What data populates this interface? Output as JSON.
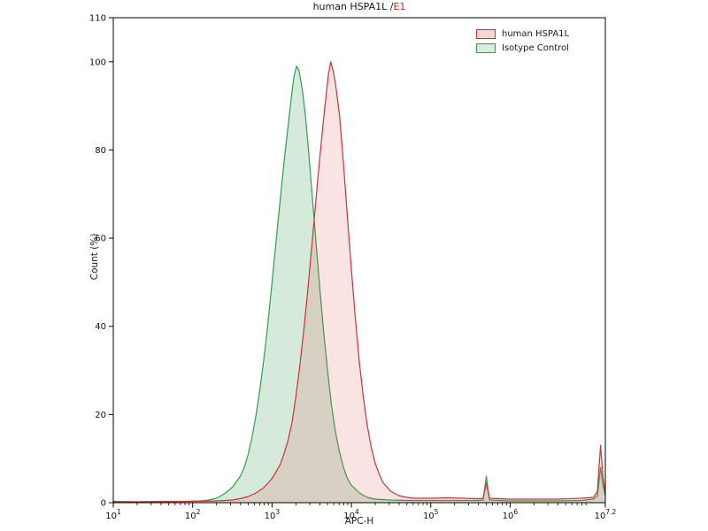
{
  "title": {
    "main": "human HSPA1L /",
    "accent": "E1",
    "accent_color": "#cc2222"
  },
  "chart_data": {
    "type": "area",
    "subtype": "flow-cytometry-histogram",
    "x_scale": "log10",
    "xlabel": "APC-H",
    "ylabel": "Count  (%)",
    "xlim": [
      1,
      7.2
    ],
    "ylim": [
      0,
      110
    ],
    "x_tick_exponents": [
      "1",
      "2",
      "3",
      "4",
      "5",
      "6",
      "7.2"
    ],
    "y_ticks": [
      0,
      20,
      40,
      60,
      80,
      100,
      110
    ],
    "grid": false,
    "legend_position": "top-right-inside",
    "legend": [
      {
        "label": "human HSPA1L",
        "stroke": "#cc3333",
        "fill": "#f7d6d6"
      },
      {
        "label": "Isotype Control",
        "stroke": "#2e9e4f",
        "fill": "#d8eedd"
      }
    ],
    "series": [
      {
        "name": "Isotype Control",
        "stroke": "#2e9e4f",
        "fill": "rgba(70,160,90,0.22)",
        "peak_x_log10": 3.31,
        "peak_y": 99,
        "points": [
          [
            1.0,
            0.3
          ],
          [
            1.3,
            0.2
          ],
          [
            1.6,
            0.3
          ],
          [
            1.9,
            0.3
          ],
          [
            2.1,
            0.4
          ],
          [
            2.2,
            0.6
          ],
          [
            2.3,
            1
          ],
          [
            2.4,
            2
          ],
          [
            2.5,
            3.5
          ],
          [
            2.6,
            6
          ],
          [
            2.65,
            8
          ],
          [
            2.7,
            11
          ],
          [
            2.75,
            15
          ],
          [
            2.8,
            20
          ],
          [
            2.85,
            26
          ],
          [
            2.9,
            33
          ],
          [
            2.95,
            41
          ],
          [
            3.0,
            50
          ],
          [
            3.05,
            59
          ],
          [
            3.1,
            68
          ],
          [
            3.15,
            77
          ],
          [
            3.2,
            85
          ],
          [
            3.25,
            93
          ],
          [
            3.28,
            97
          ],
          [
            3.31,
            99
          ],
          [
            3.34,
            98
          ],
          [
            3.38,
            94
          ],
          [
            3.42,
            88
          ],
          [
            3.46,
            80
          ],
          [
            3.5,
            71
          ],
          [
            3.55,
            60
          ],
          [
            3.6,
            49
          ],
          [
            3.65,
            39
          ],
          [
            3.7,
            30
          ],
          [
            3.75,
            22
          ],
          [
            3.8,
            16
          ],
          [
            3.85,
            11.5
          ],
          [
            3.9,
            8
          ],
          [
            3.95,
            5.5
          ],
          [
            4.0,
            4
          ],
          [
            4.1,
            2.2
          ],
          [
            4.2,
            1.2
          ],
          [
            4.3,
            0.8
          ],
          [
            4.5,
            0.6
          ],
          [
            4.7,
            0.5
          ],
          [
            5.0,
            0.5
          ],
          [
            5.3,
            0.5
          ],
          [
            5.6,
            0.5
          ],
          [
            5.66,
            0.6
          ],
          [
            5.7,
            6
          ],
          [
            5.74,
            0.6
          ],
          [
            6.0,
            0.4
          ],
          [
            6.3,
            0.4
          ],
          [
            6.6,
            0.4
          ],
          [
            6.9,
            0.5
          ],
          [
            7.05,
            0.8
          ],
          [
            7.1,
            1.5
          ],
          [
            7.14,
            8
          ],
          [
            7.17,
            4
          ],
          [
            7.2,
            1.5
          ]
        ]
      },
      {
        "name": "human HSPA1L",
        "stroke": "#cc3333",
        "fill": "rgba(225,80,80,0.16)",
        "peak_x_log10": 3.74,
        "peak_y": 100,
        "points": [
          [
            1.0,
            0.2
          ],
          [
            1.5,
            0.2
          ],
          [
            2.0,
            0.3
          ],
          [
            2.3,
            0.4
          ],
          [
            2.5,
            0.6
          ],
          [
            2.6,
            0.9
          ],
          [
            2.7,
            1.4
          ],
          [
            2.8,
            2.2
          ],
          [
            2.9,
            3.5
          ],
          [
            3.0,
            5.5
          ],
          [
            3.1,
            8.5
          ],
          [
            3.15,
            11
          ],
          [
            3.2,
            14
          ],
          [
            3.25,
            18
          ],
          [
            3.3,
            24
          ],
          [
            3.35,
            31
          ],
          [
            3.4,
            39
          ],
          [
            3.45,
            48
          ],
          [
            3.5,
            58
          ],
          [
            3.55,
            68
          ],
          [
            3.6,
            78
          ],
          [
            3.65,
            87
          ],
          [
            3.68,
            92
          ],
          [
            3.71,
            97
          ],
          [
            3.74,
            100
          ],
          [
            3.77,
            98
          ],
          [
            3.8,
            95
          ],
          [
            3.85,
            88
          ],
          [
            3.9,
            77
          ],
          [
            3.95,
            65
          ],
          [
            4.0,
            53
          ],
          [
            4.05,
            42
          ],
          [
            4.1,
            32
          ],
          [
            4.15,
            24
          ],
          [
            4.2,
            17.5
          ],
          [
            4.25,
            12.5
          ],
          [
            4.3,
            9
          ],
          [
            4.35,
            6.5
          ],
          [
            4.4,
            4.5
          ],
          [
            4.5,
            2.5
          ],
          [
            4.6,
            1.6
          ],
          [
            4.7,
            1.2
          ],
          [
            4.8,
            1
          ],
          [
            5.0,
            1
          ],
          [
            5.2,
            1.1
          ],
          [
            5.4,
            1
          ],
          [
            5.6,
            0.9
          ],
          [
            5.66,
            1
          ],
          [
            5.7,
            4.5
          ],
          [
            5.74,
            1
          ],
          [
            6.0,
            0.8
          ],
          [
            6.3,
            0.8
          ],
          [
            6.6,
            0.8
          ],
          [
            6.9,
            1
          ],
          [
            7.05,
            1.2
          ],
          [
            7.1,
            2.5
          ],
          [
            7.14,
            13
          ],
          [
            7.17,
            6
          ],
          [
            7.2,
            2
          ]
        ]
      }
    ]
  }
}
